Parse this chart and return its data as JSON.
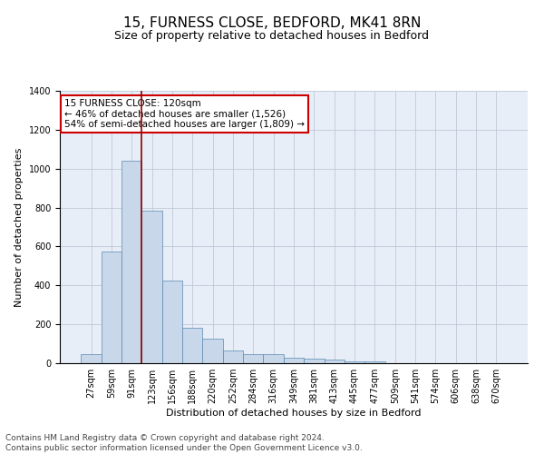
{
  "title1": "15, FURNESS CLOSE, BEDFORD, MK41 8RN",
  "title2": "Size of property relative to detached houses in Bedford",
  "xlabel": "Distribution of detached houses by size in Bedford",
  "ylabel": "Number of detached properties",
  "footnote1": "Contains HM Land Registry data © Crown copyright and database right 2024.",
  "footnote2": "Contains public sector information licensed under the Open Government Licence v3.0.",
  "bar_labels": [
    "27sqm",
    "59sqm",
    "91sqm",
    "123sqm",
    "156sqm",
    "188sqm",
    "220sqm",
    "252sqm",
    "284sqm",
    "316sqm",
    "349sqm",
    "381sqm",
    "413sqm",
    "445sqm",
    "477sqm",
    "509sqm",
    "541sqm",
    "574sqm",
    "606sqm",
    "638sqm",
    "670sqm"
  ],
  "bar_heights": [
    47,
    572,
    1040,
    785,
    424,
    181,
    126,
    65,
    47,
    47,
    27,
    24,
    17,
    11,
    11,
    0,
    0,
    0,
    0,
    0,
    0
  ],
  "bar_color": "#c8d8ea",
  "bar_edgecolor": "#5a8ab0",
  "grid_color": "#c0c8d8",
  "background_color": "#e8eef8",
  "ylim": [
    0,
    1400
  ],
  "yticks": [
    0,
    200,
    400,
    600,
    800,
    1000,
    1200,
    1400
  ],
  "annotation_box_text": "15 FURNESS CLOSE: 120sqm\n← 46% of detached houses are smaller (1,526)\n54% of semi-detached houses are larger (1,809) →",
  "vline_color": "#8b0000",
  "vline_x": 2.5,
  "title1_fontsize": 11,
  "title2_fontsize": 9,
  "axis_label_fontsize": 8,
  "tick_fontsize": 7,
  "footnote_fontsize": 6.5,
  "annotation_fontsize": 7.5
}
